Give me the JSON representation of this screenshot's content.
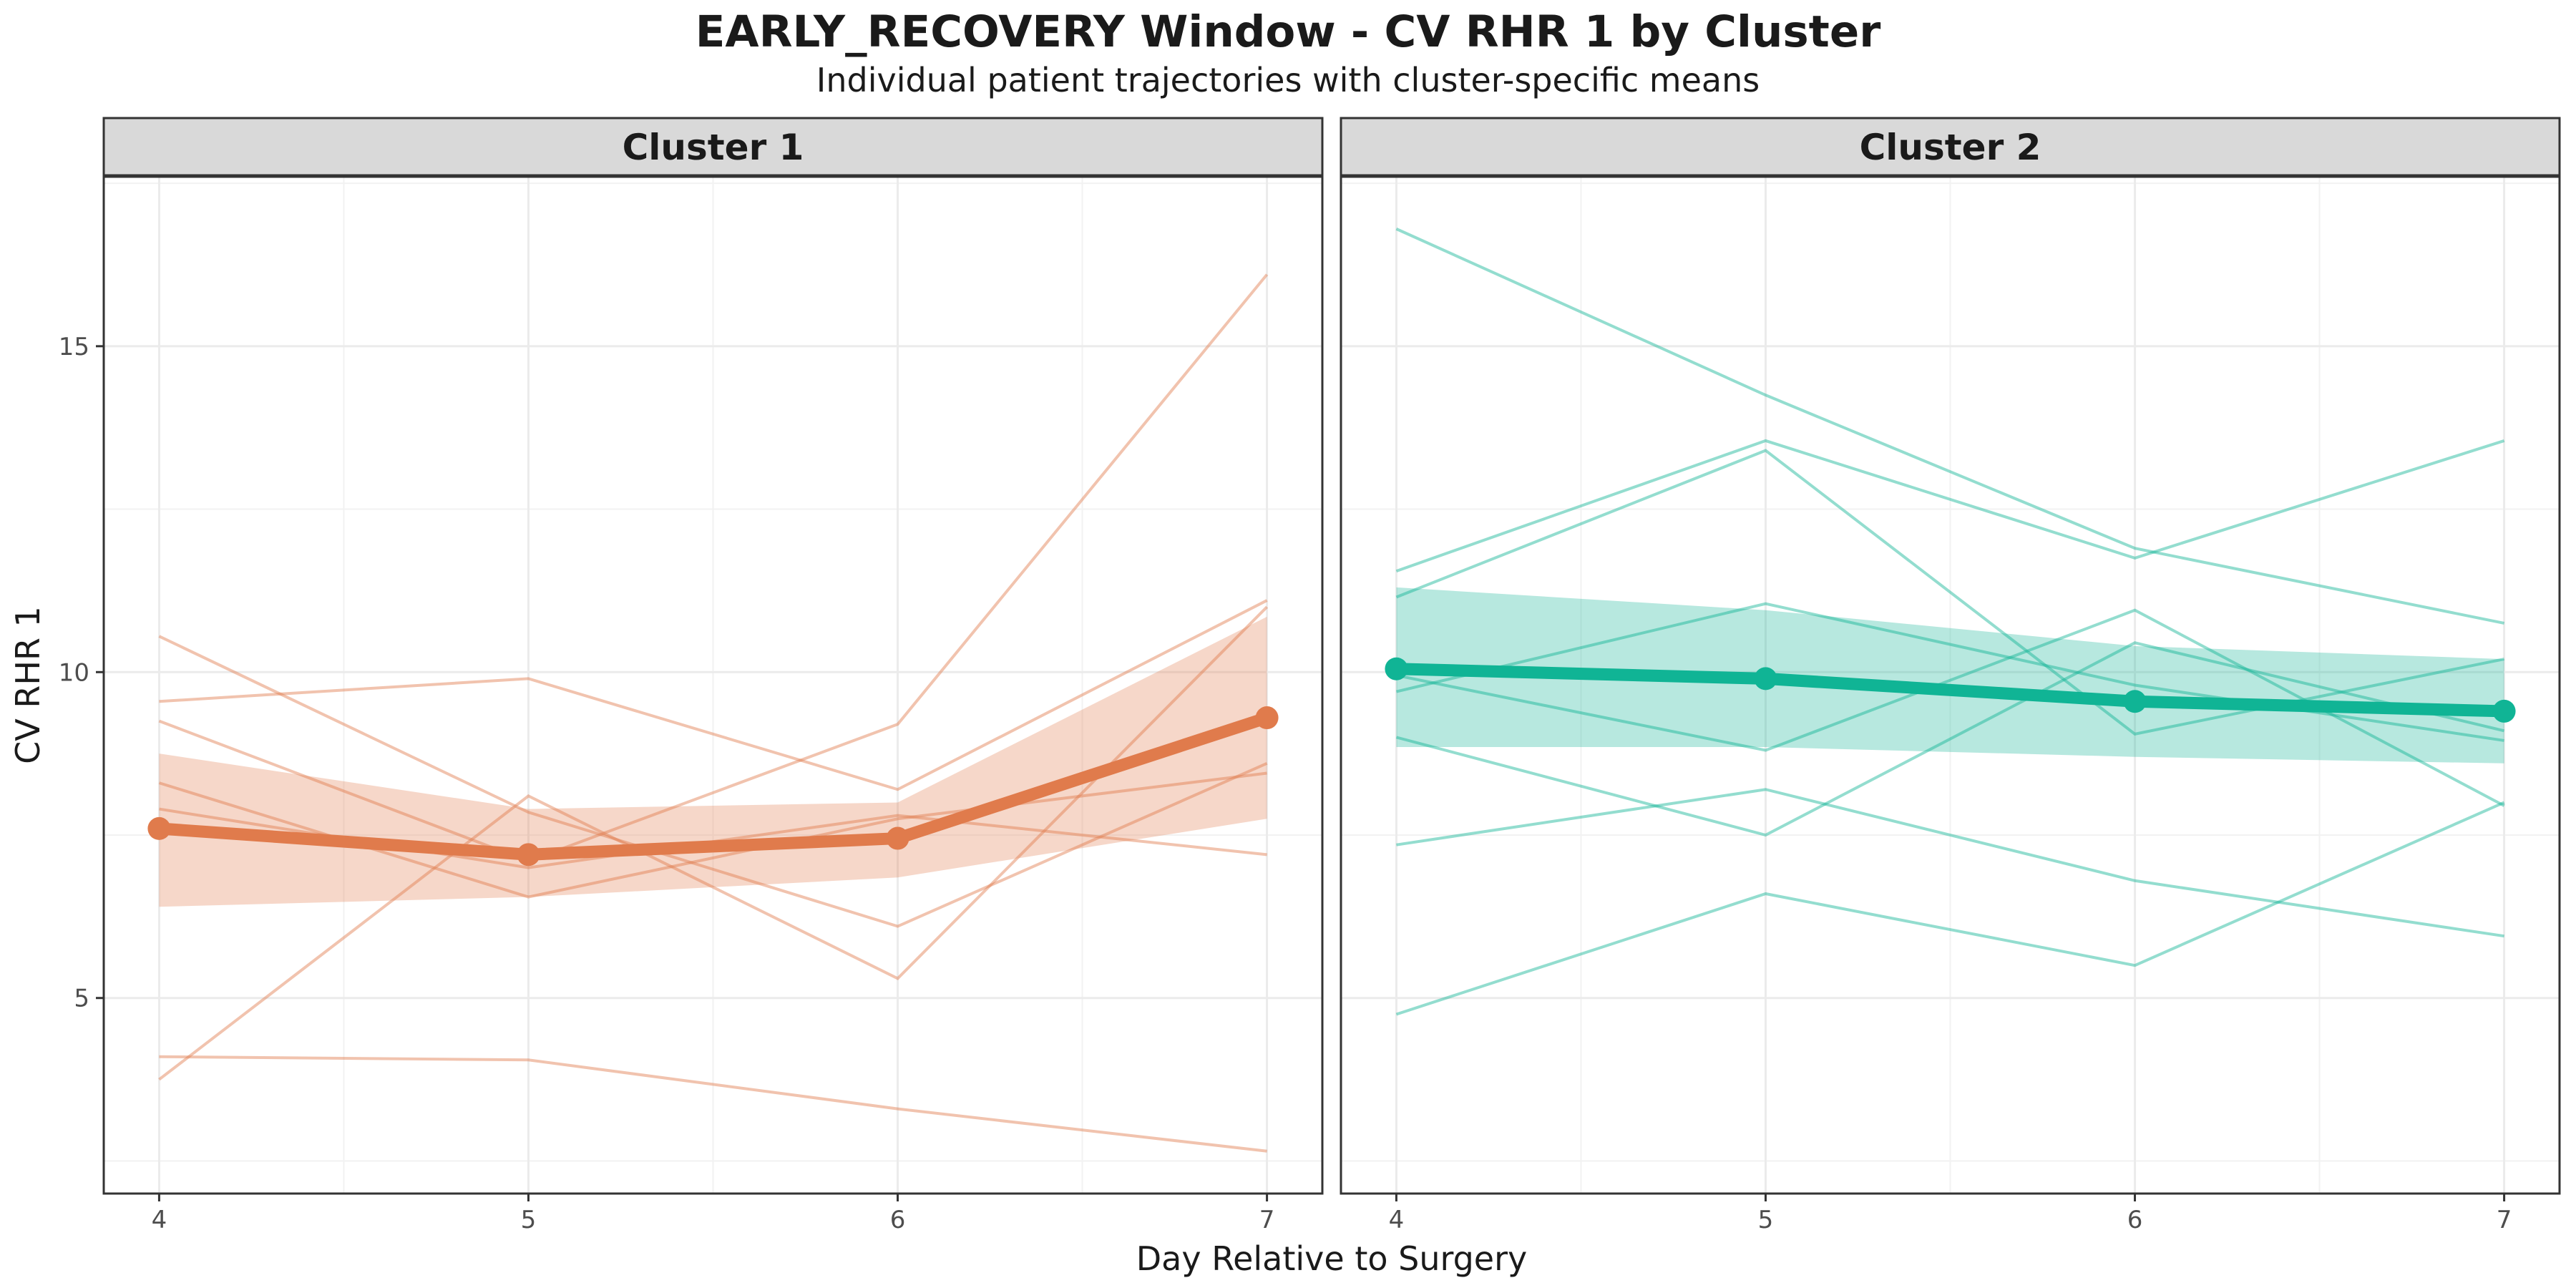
{
  "title": "EARLY_RECOVERY Window - CV RHR 1 by Cluster",
  "subtitle": "Individual patient trajectories with cluster-specific means",
  "chart_data": {
    "type": "line",
    "xlabel": "Day Relative to Surgery",
    "ylabel": "CV RHR 1",
    "x": [
      4,
      5,
      6,
      7
    ],
    "xlim": [
      3.85,
      7.15
    ],
    "ylim": [
      2.0,
      17.6
    ],
    "xticks": [
      4,
      5,
      6,
      7
    ],
    "yticks": [
      5,
      10,
      15
    ],
    "grid": true,
    "legend": "none",
    "facets": [
      {
        "label": "Cluster 1",
        "color": "#E07B4C",
        "individual": [
          [
            10.55,
            7.85,
            6.1,
            8.6
          ],
          [
            9.55,
            9.9,
            8.2,
            11.1
          ],
          [
            9.25,
            7.1,
            9.2,
            16.1
          ],
          [
            8.3,
            6.55,
            7.75,
            8.45
          ],
          [
            3.75,
            8.1,
            5.3,
            11.0
          ],
          [
            4.1,
            4.05,
            3.3,
            2.65
          ],
          [
            7.9,
            7.0,
            7.8,
            7.2
          ]
        ],
        "mean": [
          7.6,
          7.2,
          7.45,
          9.3
        ],
        "ci_upper": [
          8.75,
          7.9,
          8.0,
          10.85
        ],
        "ci_lower": [
          6.4,
          6.55,
          6.85,
          7.75
        ]
      },
      {
        "label": "Cluster 2",
        "color": "#10B495",
        "individual": [
          [
            16.8,
            14.25,
            11.9,
            10.75
          ],
          [
            11.55,
            13.55,
            11.75,
            13.55
          ],
          [
            11.15,
            13.4,
            9.05,
            10.2
          ],
          [
            9.95,
            8.8,
            10.95,
            7.95
          ],
          [
            9.0,
            7.5,
            10.45,
            9.1
          ],
          [
            7.35,
            8.2,
            6.8,
            5.95
          ],
          [
            4.75,
            6.6,
            5.5,
            8.0
          ],
          [
            9.7,
            11.05,
            9.8,
            8.95
          ]
        ],
        "mean": [
          10.05,
          9.9,
          9.55,
          9.4
        ],
        "ci_upper": [
          11.3,
          10.95,
          10.4,
          10.2
        ],
        "ci_lower": [
          8.85,
          8.85,
          8.7,
          8.6
        ]
      }
    ]
  }
}
